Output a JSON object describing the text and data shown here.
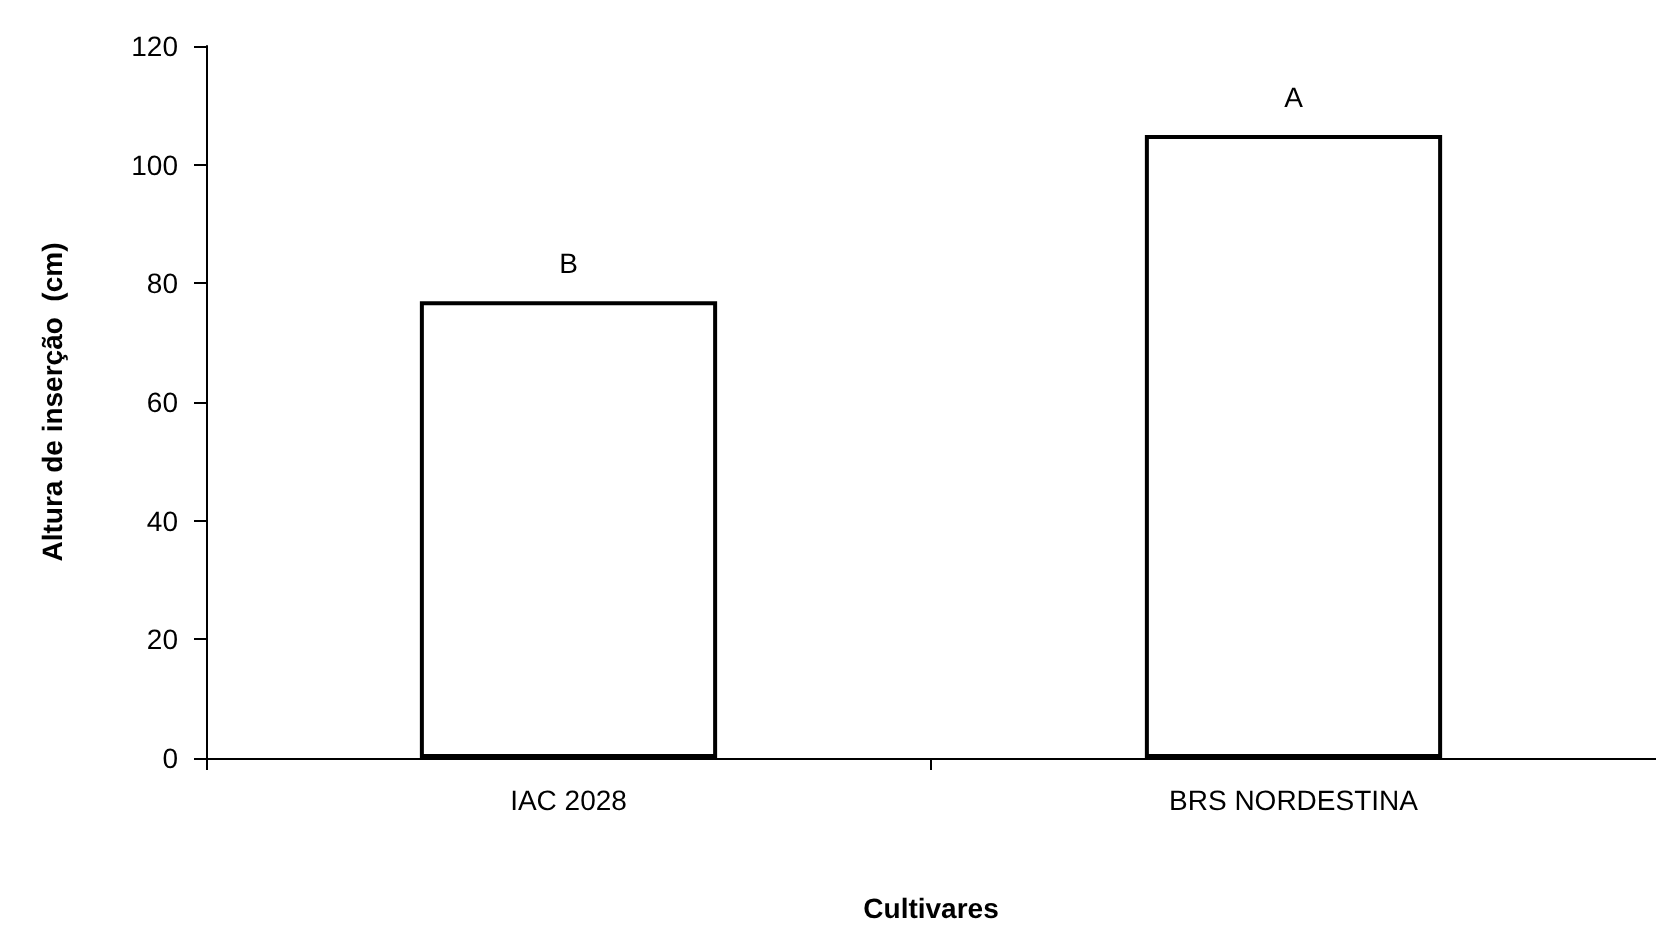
{
  "chart_data": {
    "type": "bar",
    "xlabel": "Cultivares",
    "ylabel": "Altura de inserção  (cm)",
    "categories": [
      "IAC 2028",
      "BRS NORDESTINA"
    ],
    "values": [
      77,
      105
    ],
    "color": "#ffffff",
    "ylim": [
      0,
      120
    ],
    "yticks": [
      0,
      20,
      40,
      60,
      80,
      100,
      120
    ],
    "grid": false,
    "annotations": [
      {
        "text": "B",
        "x": "IAC 2028",
        "y": 77
      },
      {
        "text": "A",
        "x": "BRS NORDESTINA",
        "y": 105
      }
    ]
  }
}
